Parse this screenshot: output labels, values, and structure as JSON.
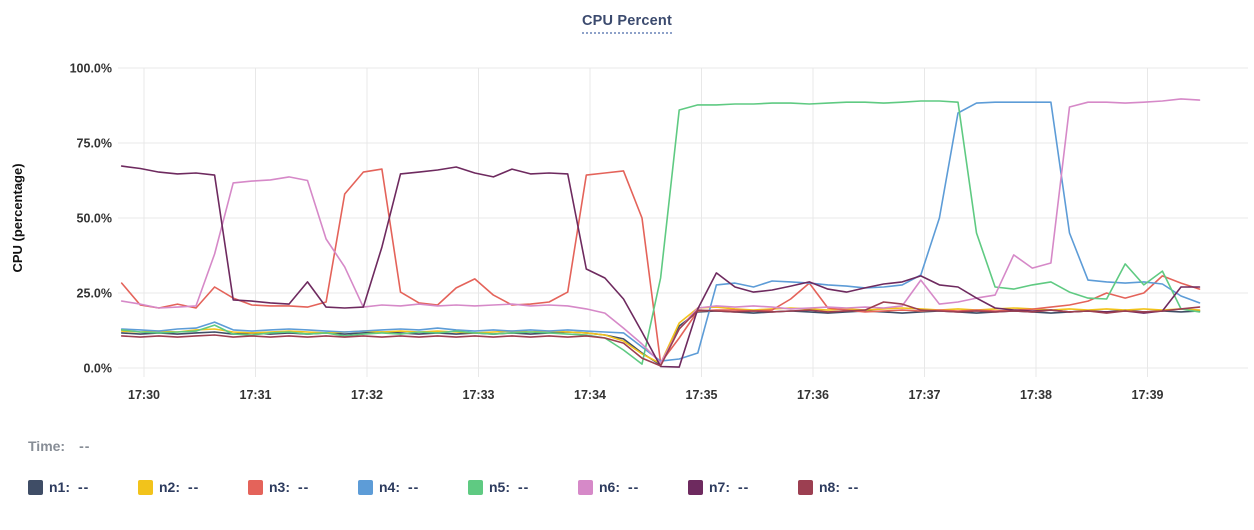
{
  "title": {
    "text": "CPU Percent"
  },
  "status": {
    "time_label": "Time:",
    "time_value": "--"
  },
  "legend": [
    {
      "id": "n1",
      "label": "n1:",
      "value": "--",
      "color": "#3f4d66"
    },
    {
      "id": "n2",
      "label": "n2:",
      "value": "--",
      "color": "#f2c31b"
    },
    {
      "id": "n3",
      "label": "n3:",
      "value": "--",
      "color": "#e4635a"
    },
    {
      "id": "n4",
      "label": "n4:",
      "value": "--",
      "color": "#5d9cd7"
    },
    {
      "id": "n5",
      "label": "n5:",
      "value": "--",
      "color": "#5fca82"
    },
    {
      "id": "n6",
      "label": "n6:",
      "value": "--",
      "color": "#d689c8"
    },
    {
      "id": "n7",
      "label": "n7:",
      "value": "--",
      "color": "#6e2a5f"
    },
    {
      "id": "n8",
      "label": "n8:",
      "value": "--",
      "color": "#9c3f51"
    }
  ],
  "chart_data": {
    "type": "line",
    "title": "CPU Percent",
    "ylabel": "CPU (percentage)",
    "xlabel": "",
    "ylim": [
      0,
      100
    ],
    "grid": true,
    "legend_position": "bottom",
    "y_ticks": [
      {
        "label": "100.0%",
        "value": 100
      },
      {
        "label": "75.0%",
        "value": 75
      },
      {
        "label": "50.0%",
        "value": 50
      },
      {
        "label": "25.0%",
        "value": 25
      },
      {
        "label": "0.0%",
        "value": 0
      }
    ],
    "x_ticks": [
      {
        "label": "17:30",
        "minute": 0
      },
      {
        "label": "17:31",
        "minute": 1
      },
      {
        "label": "17:32",
        "minute": 2
      },
      {
        "label": "17:33",
        "minute": 3
      },
      {
        "label": "17:34",
        "minute": 4
      },
      {
        "label": "17:35",
        "minute": 5
      },
      {
        "label": "17:36",
        "minute": 6
      },
      {
        "label": "17:37",
        "minute": 7
      },
      {
        "label": "17:38",
        "minute": 8
      },
      {
        "label": "17:39",
        "minute": 9
      }
    ],
    "sampling": {
      "start_minute": -0.2,
      "step_minute": 0.166667
    },
    "series": [
      {
        "name": "n1",
        "color": "#3f4d66",
        "values": [
          11.7,
          11.3,
          11.7,
          11.3,
          11.7,
          12.0,
          11.3,
          11.7,
          11.3,
          11.7,
          11.3,
          11.7,
          11.3,
          11.7,
          12.0,
          11.7,
          11.3,
          11.7,
          11.3,
          11.7,
          11.3,
          11.7,
          11.3,
          11.7,
          12.0,
          11.7,
          11.0,
          9.7,
          5.0,
          1.0,
          14.0,
          18.7,
          19.0,
          18.7,
          18.3,
          18.7,
          19.0,
          18.7,
          18.3,
          18.7,
          19.0,
          18.7,
          18.3,
          18.7,
          19.0,
          18.7,
          18.3,
          18.7,
          19.0,
          18.7,
          18.3,
          18.7,
          19.0,
          18.7,
          19.3,
          18.7,
          19.0,
          18.7,
          19.0
        ]
      },
      {
        "name": "n2",
        "color": "#f2c31b",
        "values": [
          12.3,
          12.0,
          12.3,
          12.0,
          12.7,
          13.0,
          12.0,
          11.7,
          12.0,
          12.3,
          12.0,
          11.7,
          12.0,
          12.3,
          12.0,
          12.3,
          12.0,
          12.3,
          12.0,
          11.7,
          12.0,
          12.3,
          12.0,
          12.3,
          12.0,
          11.7,
          11.0,
          9.0,
          4.7,
          1.5,
          15.0,
          20.0,
          20.3,
          19.7,
          19.3,
          19.7,
          20.0,
          19.7,
          19.3,
          19.7,
          19.3,
          19.7,
          20.0,
          19.7,
          19.3,
          19.7,
          19.3,
          19.7,
          20.0,
          19.7,
          19.3,
          19.7,
          19.3,
          19.7,
          19.3,
          19.7,
          19.3,
          19.7,
          19.3
        ]
      },
      {
        "name": "n3",
        "color": "#e4635a",
        "values": [
          28.3,
          21.0,
          20.0,
          21.3,
          20.0,
          27.0,
          23.3,
          21.0,
          20.7,
          20.7,
          20.3,
          22.0,
          58.0,
          65.3,
          66.3,
          25.3,
          21.7,
          21.0,
          26.7,
          29.7,
          24.3,
          21.0,
          21.3,
          22.0,
          25.3,
          64.3,
          65.0,
          65.7,
          50.0,
          1.7,
          10.0,
          19.0,
          19.3,
          19.3,
          19.0,
          19.3,
          23.0,
          28.3,
          20.0,
          19.3,
          18.7,
          19.0,
          19.3,
          19.0,
          19.3,
          19.0,
          19.3,
          19.0,
          19.3,
          19.6,
          20.3,
          21.0,
          22.3,
          25.0,
          23.3,
          25.0,
          30.7,
          28.3,
          26.3
        ]
      },
      {
        "name": "n4",
        "color": "#5d9cd7",
        "values": [
          13.0,
          12.7,
          12.3,
          13.0,
          13.3,
          15.3,
          12.7,
          12.3,
          12.7,
          13.0,
          12.7,
          12.3,
          12.0,
          12.3,
          12.7,
          13.0,
          12.7,
          13.3,
          12.7,
          12.3,
          12.7,
          12.3,
          12.7,
          12.3,
          12.7,
          12.3,
          12.0,
          11.7,
          7.0,
          2.3,
          3.0,
          5.0,
          27.7,
          28.3,
          27.0,
          29.0,
          28.7,
          28.3,
          27.7,
          27.3,
          26.7,
          27.0,
          27.7,
          31.0,
          50.0,
          85.0,
          88.3,
          88.6,
          88.6,
          88.6,
          88.6,
          45.0,
          29.3,
          28.7,
          28.3,
          28.7,
          28.0,
          24.0,
          21.7
        ]
      },
      {
        "name": "n5",
        "color": "#5fca82",
        "values": [
          12.7,
          12.0,
          11.7,
          12.0,
          12.3,
          14.3,
          11.3,
          11.0,
          11.7,
          12.0,
          11.3,
          11.7,
          10.7,
          11.3,
          11.7,
          11.3,
          12.0,
          11.7,
          12.3,
          11.7,
          11.3,
          11.7,
          12.0,
          11.7,
          11.3,
          11.0,
          10.0,
          6.0,
          1.3,
          30.0,
          86.0,
          87.7,
          87.7,
          88.0,
          88.0,
          88.3,
          88.3,
          88.0,
          88.3,
          88.6,
          88.6,
          88.3,
          88.6,
          89.0,
          89.0,
          88.6,
          45.0,
          27.0,
          26.3,
          27.7,
          28.7,
          25.3,
          23.3,
          23.0,
          34.7,
          27.7,
          32.3,
          19.7,
          18.7
        ]
      },
      {
        "name": "n6",
        "color": "#d689c8",
        "values": [
          22.3,
          21.3,
          20.0,
          20.3,
          20.7,
          38.0,
          61.7,
          62.3,
          62.7,
          63.7,
          62.5,
          43.0,
          33.7,
          20.3,
          21.0,
          20.7,
          21.3,
          20.7,
          21.0,
          20.7,
          21.0,
          21.3,
          20.7,
          21.0,
          20.7,
          19.7,
          18.3,
          13.3,
          8.0,
          1.7,
          13.0,
          20.0,
          20.7,
          20.3,
          20.7,
          20.3,
          19.7,
          20.0,
          20.3,
          20.0,
          20.3,
          20.0,
          20.7,
          29.3,
          21.3,
          22.0,
          23.3,
          24.3,
          37.7,
          33.3,
          35.0,
          87.0,
          88.6,
          88.6,
          88.3,
          88.6,
          89.0,
          89.7,
          89.3
        ]
      },
      {
        "name": "n7",
        "color": "#6e2a5f",
        "values": [
          67.3,
          66.5,
          65.3,
          64.7,
          65.0,
          64.3,
          22.7,
          22.3,
          21.7,
          21.3,
          28.7,
          20.3,
          20.0,
          20.3,
          40.3,
          64.7,
          65.3,
          66.0,
          67.0,
          65.0,
          63.7,
          66.3,
          64.7,
          65.0,
          64.7,
          33.0,
          30.0,
          23.0,
          12.0,
          0.5,
          0.3,
          19.7,
          31.7,
          27.0,
          25.3,
          26.0,
          27.3,
          28.7,
          26.3,
          25.3,
          26.7,
          28.0,
          28.7,
          30.7,
          27.7,
          27.0,
          23.3,
          20.0,
          19.3,
          19.0,
          19.3,
          18.7,
          19.0,
          18.7,
          19.0,
          18.3,
          19.0,
          27.0,
          27.0
        ]
      },
      {
        "name": "n8",
        "color": "#9c3f51",
        "values": [
          10.7,
          10.3,
          10.7,
          10.3,
          10.7,
          11.0,
          10.3,
          10.7,
          10.3,
          10.7,
          10.3,
          10.7,
          10.3,
          10.7,
          10.3,
          10.7,
          10.3,
          10.7,
          10.3,
          10.7,
          10.3,
          10.7,
          10.3,
          10.7,
          10.3,
          10.7,
          10.0,
          8.3,
          3.3,
          0.7,
          13.0,
          19.3,
          19.0,
          18.7,
          19.0,
          18.7,
          19.0,
          19.3,
          18.7,
          19.0,
          19.3,
          22.0,
          21.3,
          19.3,
          19.0,
          18.7,
          19.0,
          18.7,
          19.0,
          18.7,
          19.3,
          18.7,
          19.0,
          18.3,
          19.0,
          18.7,
          19.0,
          19.7,
          20.3
        ]
      }
    ]
  }
}
